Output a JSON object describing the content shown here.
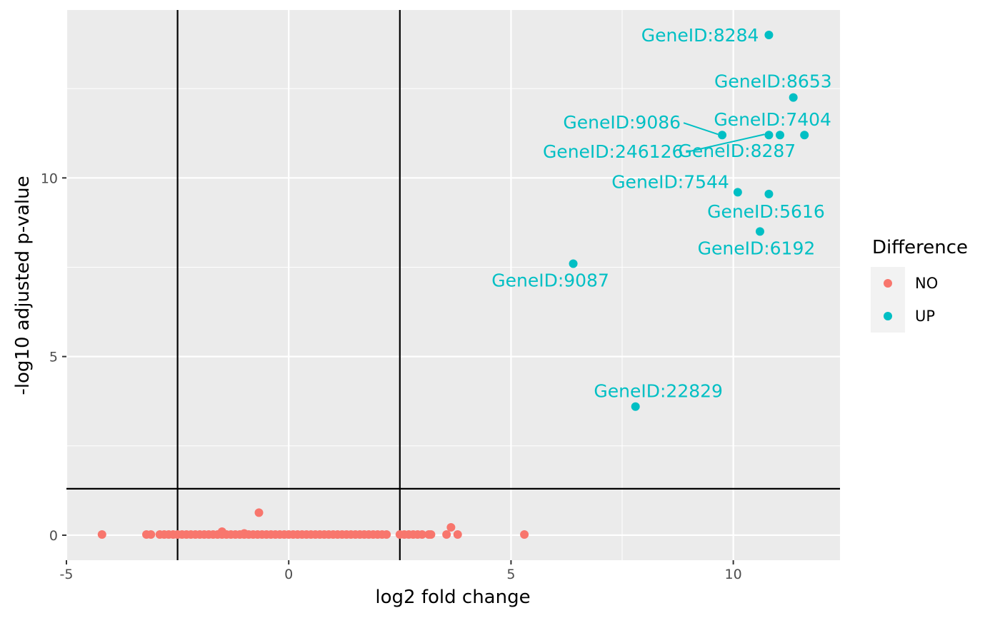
{
  "chart_data": {
    "type": "scatter",
    "xlabel": "log2 fold change",
    "ylabel": "-log10 adjusted p-value",
    "xlim": [
      -5,
      12.4
    ],
    "ylim": [
      -0.7,
      14.7
    ],
    "x_ticks": [
      -5,
      0,
      5,
      10
    ],
    "x_tick_labels": [
      "-5",
      "0",
      "5",
      "10"
    ],
    "y_ticks": [
      0,
      5,
      10
    ],
    "y_tick_labels": [
      "0",
      "5",
      "10"
    ],
    "x_minor": [
      -2.5,
      2.5,
      7.5
    ],
    "y_minor": [
      2.5,
      7.5,
      12.5
    ],
    "grid": true,
    "thresholds": {
      "x": [
        -2.5,
        2.5
      ],
      "y": [
        1.3
      ]
    },
    "legend": {
      "title": "Difference",
      "position": "right",
      "entries": [
        {
          "label": "NO",
          "color": "#F8766D"
        },
        {
          "label": "UP",
          "color": "#00BFC4"
        }
      ]
    },
    "series": [
      {
        "name": "NO",
        "color": "#F8766D",
        "points": [
          {
            "x": -4.2,
            "y": 0.02
          },
          {
            "x": -3.2,
            "y": 0.02
          },
          {
            "x": -3.1,
            "y": 0.02
          },
          {
            "x": -2.9,
            "y": 0.02
          },
          {
            "x": -2.8,
            "y": 0.02
          },
          {
            "x": -2.7,
            "y": 0.02
          },
          {
            "x": -2.6,
            "y": 0.02
          },
          {
            "x": -2.5,
            "y": 0.02
          },
          {
            "x": -2.4,
            "y": 0.02
          },
          {
            "x": -2.3,
            "y": 0.02
          },
          {
            "x": -2.2,
            "y": 0.02
          },
          {
            "x": -2.1,
            "y": 0.02
          },
          {
            "x": -2.0,
            "y": 0.02
          },
          {
            "x": -1.9,
            "y": 0.02
          },
          {
            "x": -1.8,
            "y": 0.02
          },
          {
            "x": -1.7,
            "y": 0.02
          },
          {
            "x": -1.6,
            "y": 0.02
          },
          {
            "x": -1.5,
            "y": 0.02
          },
          {
            "x": -1.5,
            "y": 0.1
          },
          {
            "x": -1.4,
            "y": 0.02
          },
          {
            "x": -1.3,
            "y": 0.02
          },
          {
            "x": -1.2,
            "y": 0.02
          },
          {
            "x": -1.1,
            "y": 0.02
          },
          {
            "x": -1.0,
            "y": 0.05
          },
          {
            "x": -1.0,
            "y": 0.02
          },
          {
            "x": -0.9,
            "y": 0.02
          },
          {
            "x": -0.8,
            "y": 0.02
          },
          {
            "x": -0.7,
            "y": 0.02
          },
          {
            "x": -0.67,
            "y": 0.63
          },
          {
            "x": -0.6,
            "y": 0.02
          },
          {
            "x": -0.5,
            "y": 0.02
          },
          {
            "x": -0.4,
            "y": 0.02
          },
          {
            "x": -0.3,
            "y": 0.02
          },
          {
            "x": -0.2,
            "y": 0.02
          },
          {
            "x": -0.1,
            "y": 0.02
          },
          {
            "x": 0.0,
            "y": 0.02
          },
          {
            "x": 0.1,
            "y": 0.02
          },
          {
            "x": 0.2,
            "y": 0.02
          },
          {
            "x": 0.3,
            "y": 0.02
          },
          {
            "x": 0.4,
            "y": 0.02
          },
          {
            "x": 0.5,
            "y": 0.02
          },
          {
            "x": 0.6,
            "y": 0.02
          },
          {
            "x": 0.7,
            "y": 0.02
          },
          {
            "x": 0.8,
            "y": 0.02
          },
          {
            "x": 0.9,
            "y": 0.02
          },
          {
            "x": 1.0,
            "y": 0.02
          },
          {
            "x": 1.1,
            "y": 0.02
          },
          {
            "x": 1.2,
            "y": 0.02
          },
          {
            "x": 1.3,
            "y": 0.02
          },
          {
            "x": 1.4,
            "y": 0.02
          },
          {
            "x": 1.5,
            "y": 0.02
          },
          {
            "x": 1.6,
            "y": 0.02
          },
          {
            "x": 1.7,
            "y": 0.02
          },
          {
            "x": 1.8,
            "y": 0.02
          },
          {
            "x": 1.9,
            "y": 0.02
          },
          {
            "x": 2.0,
            "y": 0.02
          },
          {
            "x": 2.1,
            "y": 0.02
          },
          {
            "x": 2.2,
            "y": 0.02
          },
          {
            "x": 2.5,
            "y": 0.02
          },
          {
            "x": 2.6,
            "y": 0.02
          },
          {
            "x": 2.7,
            "y": 0.02
          },
          {
            "x": 2.8,
            "y": 0.02
          },
          {
            "x": 2.9,
            "y": 0.02
          },
          {
            "x": 3.0,
            "y": 0.02
          },
          {
            "x": 3.15,
            "y": 0.02
          },
          {
            "x": 3.2,
            "y": 0.02
          },
          {
            "x": 3.55,
            "y": 0.02
          },
          {
            "x": 3.65,
            "y": 0.22
          },
          {
            "x": 3.8,
            "y": 0.02
          },
          {
            "x": 5.3,
            "y": 0.02
          }
        ]
      },
      {
        "name": "UP",
        "color": "#00BFC4",
        "points": [
          {
            "x": 10.8,
            "y": 14.0,
            "label": "GeneID:8284"
          },
          {
            "x": 11.35,
            "y": 12.25,
            "label": "GeneID:8653"
          },
          {
            "x": 11.05,
            "y": 11.2,
            "label": "GeneID:7404"
          },
          {
            "x": 9.75,
            "y": 11.2,
            "label": "GeneID:9086"
          },
          {
            "x": 10.8,
            "y": 11.2,
            "label": "GeneID:246126"
          },
          {
            "x": 11.6,
            "y": 11.2,
            "label": "GeneID:8287"
          },
          {
            "x": 10.1,
            "y": 9.6,
            "label": "GeneID:7544"
          },
          {
            "x": 10.8,
            "y": 9.55,
            "label": "GeneID:5616"
          },
          {
            "x": 10.6,
            "y": 8.5,
            "label": "GeneID:6192"
          },
          {
            "x": 6.4,
            "y": 7.6,
            "label": "GeneID:9087"
          },
          {
            "x": 7.8,
            "y": 3.6,
            "label": "GeneID:22829"
          }
        ]
      }
    ]
  }
}
